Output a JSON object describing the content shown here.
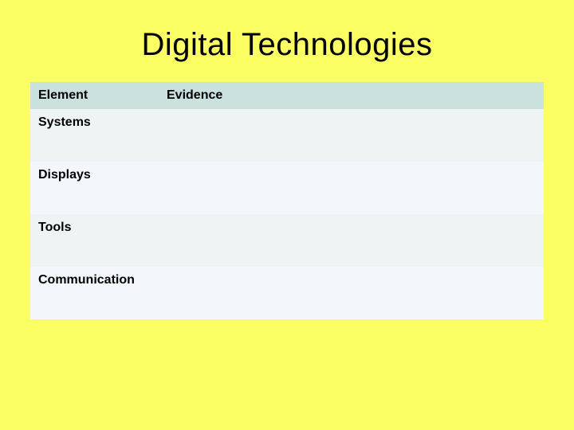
{
  "slide": {
    "background_color": "#fcff64",
    "title": "Digital Technologies",
    "title_fontsize": 40,
    "title_color": "#000000"
  },
  "table": {
    "type": "table",
    "columns": [
      {
        "label": "Element",
        "width_pct": 25
      },
      {
        "label": "Evidence",
        "width_pct": 75
      }
    ],
    "header_bg": "#cbe1de",
    "row_colors_alt": [
      "#eef4f3",
      "#f3f7fb"
    ],
    "label_fontsize": 16,
    "label_fontweight": 700,
    "text_color": "#000000",
    "rows": [
      {
        "element": "Systems",
        "evidence": ""
      },
      {
        "element": "Displays",
        "evidence": ""
      },
      {
        "element": "Tools",
        "evidence": ""
      },
      {
        "element": "Communication",
        "evidence": ""
      }
    ]
  }
}
